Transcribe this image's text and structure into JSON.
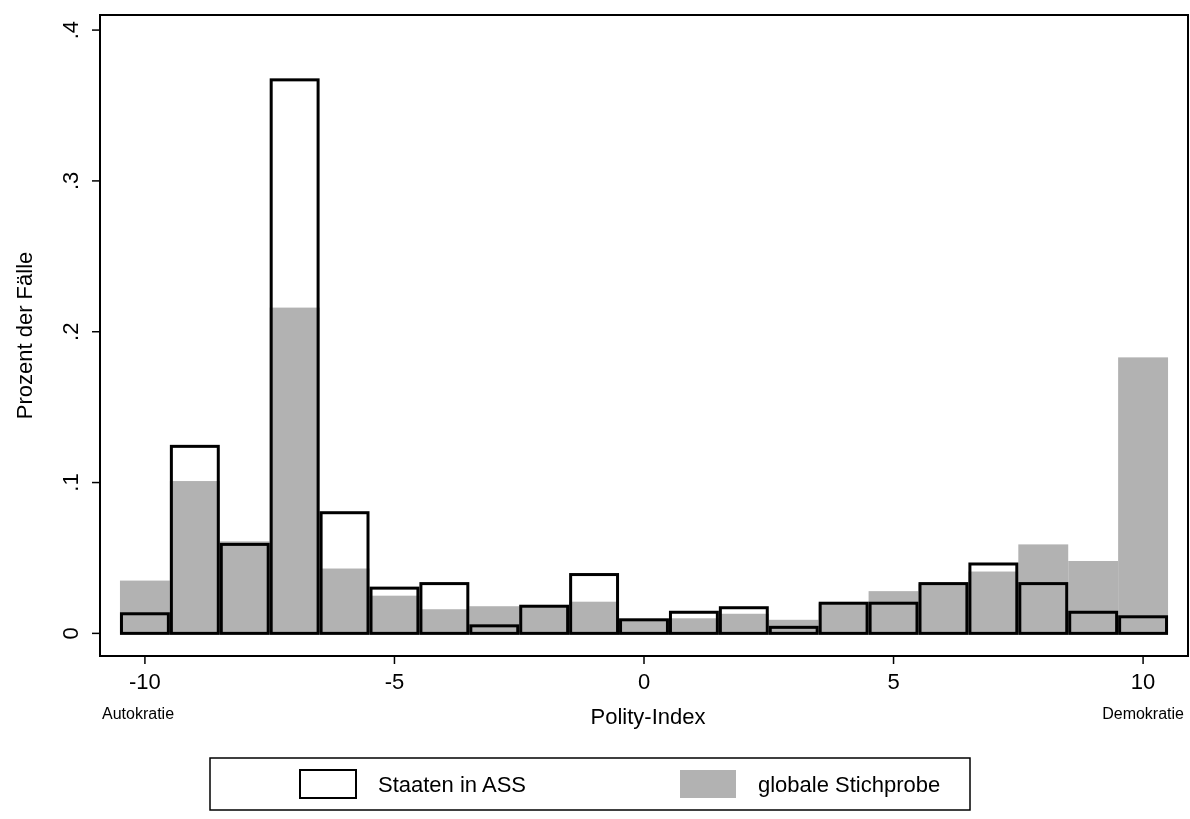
{
  "chart_data": {
    "type": "histogram",
    "xlabel": "Polity-Index",
    "ylabel": "Prozent der Fälle",
    "bins": [
      -10.5,
      -9.5,
      -8.5,
      -7.5,
      -6.5,
      -5.5,
      -4.5,
      -3.5,
      -2.5,
      -1.5,
      -0.5,
      0.5,
      1.5,
      2.5,
      3.5,
      4.5,
      5.5,
      6.5,
      7.5,
      8.5,
      9.5,
      10.5
    ],
    "series": [
      {
        "name": "globale Stichprobe",
        "color": "#b2b2b2",
        "values": [
          0.035,
          0.101,
          0.061,
          0.216,
          0.043,
          0.025,
          0.016,
          0.018,
          0.018,
          0.021,
          0.009,
          0.01,
          0.013,
          0.009,
          0.02,
          0.028,
          0.033,
          0.041,
          0.059,
          0.048,
          0.183
        ]
      },
      {
        "name": "Staaten in ASS",
        "color": "#000000",
        "values": [
          0.013,
          0.124,
          0.059,
          0.367,
          0.08,
          0.03,
          0.033,
          0.005,
          0.018,
          0.039,
          0.009,
          0.014,
          0.017,
          0.004,
          0.02,
          0.02,
          0.033,
          0.046,
          0.033,
          0.014,
          0.011
        ]
      }
    ],
    "xlim": [
      -10.9,
      10.9
    ],
    "ylim": [
      -0.015,
      0.41
    ],
    "xticks": [
      -10,
      -5,
      0,
      5,
      10
    ],
    "yticks": [
      {
        "value": 0,
        "label": "0"
      },
      {
        "value": 0.1,
        "label": ".1"
      },
      {
        "value": 0.2,
        "label": ".2"
      },
      {
        "value": 0.3,
        "label": ".3"
      },
      {
        "value": 0.4,
        "label": ".4"
      }
    ],
    "annotations": [
      "Autokratie",
      "Demokratie"
    ],
    "legend": "bottom",
    "grid": false
  }
}
